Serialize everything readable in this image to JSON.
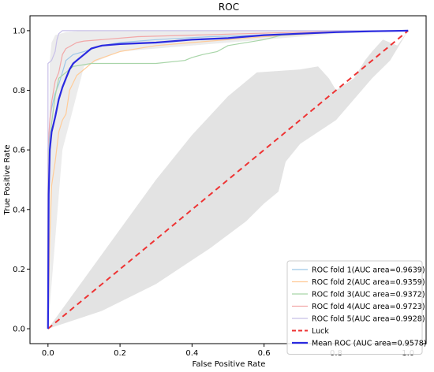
{
  "chart_data": {
    "type": "line",
    "title": "ROC",
    "xlabel": "False Positive Rate",
    "ylabel": "True Positive Rate",
    "xlim": [
      -0.05,
      1.05
    ],
    "ylim": [
      -0.05,
      1.05
    ],
    "x_ticks": [
      0.0,
      0.2,
      0.4,
      0.6,
      0.8,
      1.0
    ],
    "y_ticks": [
      0.0,
      0.2,
      0.4,
      0.6,
      0.8,
      1.0
    ],
    "x_tick_labels": [
      "0.0",
      "0.2",
      "0.4",
      "0.6",
      "0.8",
      "1.0"
    ],
    "y_tick_labels": [
      "0.0",
      "0.2",
      "0.4",
      "0.6",
      "0.8",
      "1.0"
    ],
    "grid": false,
    "legend_position": "lower-right",
    "band": {
      "color": "#d9d9d9",
      "upper": [
        [
          0,
          0
        ],
        [
          0.005,
          0.9
        ],
        [
          0.01,
          0.96
        ],
        [
          0.02,
          0.985
        ],
        [
          0.05,
          0.995
        ],
        [
          0.1,
          1
        ],
        [
          1,
          1
        ]
      ],
      "lower": [
        [
          0,
          0
        ],
        [
          0.15,
          0.06
        ],
        [
          0.3,
          0.15
        ],
        [
          0.45,
          0.27
        ],
        [
          0.55,
          0.36
        ],
        [
          0.6,
          0.42
        ],
        [
          0.64,
          0.46
        ],
        [
          0.66,
          0.56
        ],
        [
          0.7,
          0.62
        ],
        [
          0.8,
          0.7
        ],
        [
          0.9,
          0.84
        ],
        [
          0.95,
          0.9
        ],
        [
          1,
          1
        ]
      ],
      "upper2": [
        [
          0,
          0
        ],
        [
          0.3,
          0.5
        ],
        [
          0.4,
          0.65
        ],
        [
          0.5,
          0.78
        ],
        [
          0.58,
          0.86
        ],
        [
          0.7,
          0.87
        ],
        [
          0.75,
          0.88
        ],
        [
          0.78,
          0.84
        ],
        [
          0.8,
          0.8
        ],
        [
          0.85,
          0.84
        ],
        [
          0.88,
          0.9
        ],
        [
          0.9,
          0.93
        ],
        [
          0.93,
          0.97
        ],
        [
          0.97,
          0.95
        ],
        [
          1,
          1
        ]
      ]
    },
    "series": [
      {
        "name": "ROC fold 1(AUC area=0.9639)",
        "color": "#9ec7e8",
        "width": 1.2,
        "points": [
          [
            0,
            0
          ],
          [
            0,
            0.55
          ],
          [
            0.003,
            0.62
          ],
          [
            0.005,
            0.7
          ],
          [
            0.01,
            0.74
          ],
          [
            0.02,
            0.79
          ],
          [
            0.03,
            0.82
          ],
          [
            0.04,
            0.86
          ],
          [
            0.05,
            0.9
          ],
          [
            0.07,
            0.92
          ],
          [
            0.1,
            0.93
          ],
          [
            0.15,
            0.95
          ],
          [
            0.2,
            0.96
          ],
          [
            0.3,
            0.97
          ],
          [
            0.45,
            0.98
          ],
          [
            0.6,
            0.985
          ],
          [
            0.8,
            0.995
          ],
          [
            1,
            1
          ]
        ]
      },
      {
        "name": "ROC fold 2(AUC area=0.9359)",
        "color": "#ffcc99",
        "width": 1.2,
        "points": [
          [
            0,
            0
          ],
          [
            0.005,
            0.3
          ],
          [
            0.01,
            0.48
          ],
          [
            0.02,
            0.56
          ],
          [
            0.03,
            0.66
          ],
          [
            0.04,
            0.7
          ],
          [
            0.05,
            0.72
          ],
          [
            0.06,
            0.8
          ],
          [
            0.08,
            0.85
          ],
          [
            0.1,
            0.87
          ],
          [
            0.13,
            0.9
          ],
          [
            0.2,
            0.93
          ],
          [
            0.3,
            0.95
          ],
          [
            0.4,
            0.96
          ],
          [
            0.5,
            0.97
          ],
          [
            0.6,
            0.98
          ],
          [
            0.8,
            0.995
          ],
          [
            1,
            1
          ]
        ]
      },
      {
        "name": "ROC fold 3(AUC area=0.9372)",
        "color": "#a8d5a8",
        "width": 1.2,
        "points": [
          [
            0,
            0
          ],
          [
            0,
            0.55
          ],
          [
            0.01,
            0.69
          ],
          [
            0.02,
            0.78
          ],
          [
            0.03,
            0.84
          ],
          [
            0.05,
            0.86
          ],
          [
            0.07,
            0.88
          ],
          [
            0.12,
            0.89
          ],
          [
            0.2,
            0.89
          ],
          [
            0.3,
            0.89
          ],
          [
            0.38,
            0.9
          ],
          [
            0.4,
            0.91
          ],
          [
            0.43,
            0.92
          ],
          [
            0.47,
            0.93
          ],
          [
            0.5,
            0.95
          ],
          [
            0.6,
            0.97
          ],
          [
            0.65,
            0.985
          ],
          [
            0.8,
            0.995
          ],
          [
            1,
            1
          ]
        ]
      },
      {
        "name": "ROC fold 4(AUC area=0.9723)",
        "color": "#f2a7a7",
        "width": 1.2,
        "points": [
          [
            0,
            0
          ],
          [
            0,
            0.6
          ],
          [
            0.005,
            0.7
          ],
          [
            0.01,
            0.76
          ],
          [
            0.02,
            0.83
          ],
          [
            0.03,
            0.86
          ],
          [
            0.04,
            0.92
          ],
          [
            0.05,
            0.94
          ],
          [
            0.08,
            0.96
          ],
          [
            0.1,
            0.965
          ],
          [
            0.15,
            0.97
          ],
          [
            0.25,
            0.98
          ],
          [
            0.4,
            0.985
          ],
          [
            0.55,
            0.99
          ],
          [
            0.7,
            0.995
          ],
          [
            1,
            1
          ]
        ]
      },
      {
        "name": "ROC fold 5(AUC area=0.9928)",
        "color": "#c8c0e8",
        "width": 1.2,
        "points": [
          [
            0,
            0
          ],
          [
            0,
            0.89
          ],
          [
            0.01,
            0.9
          ],
          [
            0.02,
            0.93
          ],
          [
            0.025,
            0.97
          ],
          [
            0.03,
            0.99
          ],
          [
            0.04,
            1
          ],
          [
            1,
            1
          ]
        ]
      },
      {
        "name": "Luck",
        "color": "#ee3333",
        "width": 2,
        "dash": "7,5",
        "points": [
          [
            0,
            0
          ],
          [
            1,
            1
          ]
        ]
      },
      {
        "name": "Mean ROC (AUC area=0.9578)",
        "color": "#2a2ae0",
        "width": 2.2,
        "points": [
          [
            0,
            0
          ],
          [
            0.002,
            0.45
          ],
          [
            0.005,
            0.6
          ],
          [
            0.01,
            0.66
          ],
          [
            0.02,
            0.71
          ],
          [
            0.03,
            0.77
          ],
          [
            0.04,
            0.81
          ],
          [
            0.05,
            0.84
          ],
          [
            0.06,
            0.87
          ],
          [
            0.07,
            0.89
          ],
          [
            0.08,
            0.9
          ],
          [
            0.1,
            0.92
          ],
          [
            0.12,
            0.94
          ],
          [
            0.15,
            0.95
          ],
          [
            0.2,
            0.955
          ],
          [
            0.3,
            0.96
          ],
          [
            0.4,
            0.97
          ],
          [
            0.5,
            0.975
          ],
          [
            0.6,
            0.985
          ],
          [
            0.7,
            0.99
          ],
          [
            0.8,
            0.995
          ],
          [
            0.9,
            0.998
          ],
          [
            1,
            1
          ]
        ]
      }
    ]
  }
}
